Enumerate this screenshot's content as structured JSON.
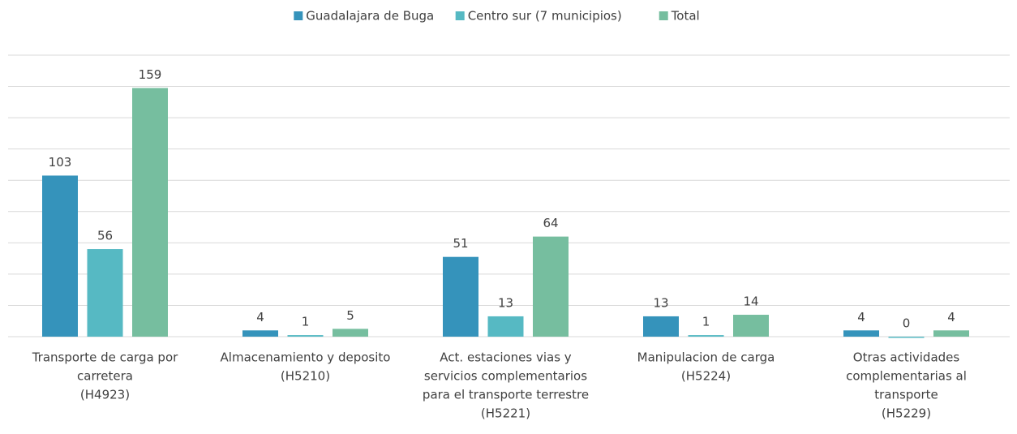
{
  "chart_data": {
    "type": "bar",
    "categories": [
      [
        "Transporte de carga por",
        "carretera",
        "(H4923)"
      ],
      [
        "Almacenamiento y deposito",
        "(H5210)"
      ],
      [
        "Act. estaciones  vias y",
        "servicios complementarios",
        "para el transporte terrestre",
        "(H5221)"
      ],
      [
        "Manipulacion de carga",
        "(H5224)"
      ],
      [
        "Otras actividades",
        "complementarias al",
        "transporte",
        "(H5229)"
      ]
    ],
    "series": [
      {
        "name": "Guadalajara de Buga",
        "color": "#3593bb",
        "values": [
          103,
          4,
          51,
          13,
          4
        ]
      },
      {
        "name": "Centro sur (7 municipios)",
        "color": "#56b9c3",
        "values": [
          56,
          1,
          13,
          1,
          0
        ]
      },
      {
        "name": "Total",
        "color": "#76be9f",
        "values": [
          159,
          5,
          64,
          14,
          4
        ]
      }
    ],
    "ylim": [
      0,
      180
    ],
    "yticks": [
      0,
      20,
      40,
      60,
      80,
      100,
      120,
      140,
      160,
      180
    ],
    "grid": true,
    "legend": "top"
  }
}
